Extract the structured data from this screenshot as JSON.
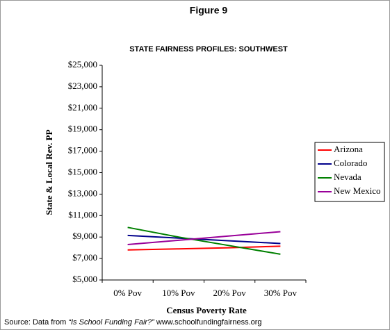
{
  "chart_data": {
    "type": "line",
    "figure_label": "Figure 9",
    "title": "STATE FAIRNESS PROFILES: SOUTHWEST",
    "x_label": "Census Poverty Rate",
    "y_label": "State & Local Rev. PP",
    "categories": [
      "0% Pov",
      "10% Pov",
      "20% Pov",
      "30% Pov"
    ],
    "series": [
      {
        "name": "Arizona",
        "color": "#ff0000",
        "values": [
          7800,
          7900,
          8000,
          8150
        ]
      },
      {
        "name": "Colorado",
        "color": "#00008b",
        "values": [
          9150,
          8900,
          8650,
          8400
        ]
      },
      {
        "name": "Nevada",
        "color": "#008000",
        "values": [
          9900,
          9000,
          8200,
          7400
        ]
      },
      {
        "name": "New Mexico",
        "color": "#990099",
        "values": [
          8300,
          8700,
          9100,
          9500
        ]
      }
    ],
    "ylim": [
      5000,
      25000
    ],
    "yticks": [
      {
        "value": 5000,
        "label": "$5,000"
      },
      {
        "value": 7000,
        "label": "$7,000"
      },
      {
        "value": 9000,
        "label": "$9,000"
      },
      {
        "value": 11000,
        "label": "$11,000"
      },
      {
        "value": 13000,
        "label": "$13,000"
      },
      {
        "value": 15000,
        "label": "$15,000"
      },
      {
        "value": 17000,
        "label": "$17,000"
      },
      {
        "value": 19000,
        "label": "$19,000"
      },
      {
        "value": 21000,
        "label": "$21,000"
      },
      {
        "value": 23000,
        "label": "$23,000"
      },
      {
        "value": 25000,
        "label": "$25,000"
      }
    ],
    "legend": "right",
    "source": {
      "prefix": "Source: Data from ",
      "publication": "“Is School Funding Fair?”",
      "url": " www.schoolfundingfairness.org"
    }
  }
}
